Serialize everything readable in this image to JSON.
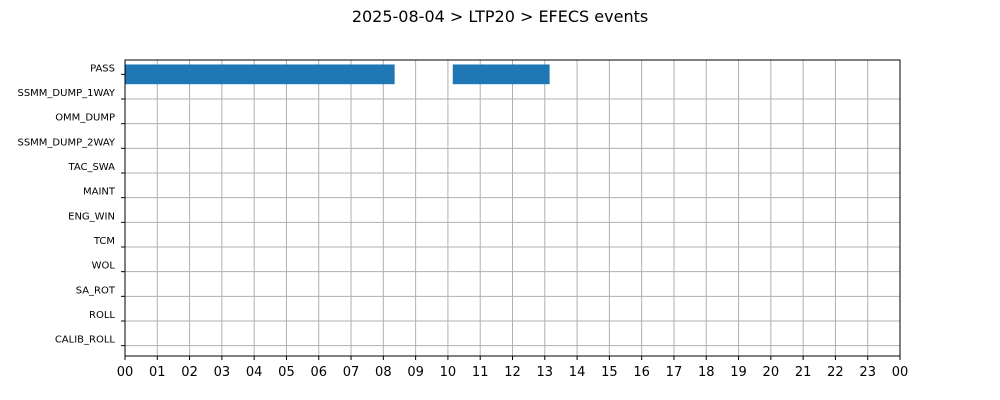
{
  "chart_data": {
    "type": "bar",
    "orientation": "horizontal-timeline",
    "title": "2025-08-04 > LTP20 > EFECS events",
    "xlabel": "",
    "ylabel": "",
    "xlim": [
      0,
      24
    ],
    "x_tick_labels": [
      "00",
      "01",
      "02",
      "03",
      "04",
      "05",
      "06",
      "07",
      "08",
      "09",
      "10",
      "11",
      "12",
      "13",
      "14",
      "15",
      "16",
      "17",
      "18",
      "19",
      "20",
      "21",
      "22",
      "23",
      "00"
    ],
    "categories": [
      "PASS",
      "SSMM_DUMP_1WAY",
      "OMM_DUMP",
      "SSMM_DUMP_2WAY",
      "TAC_SWA",
      "MAINT",
      "ENG_WIN",
      "TCM",
      "WOL",
      "SA_ROT",
      "ROLL",
      "CALIB_ROLL"
    ],
    "grid": true,
    "bar_color": "#1f77b4",
    "events": [
      {
        "category": "PASS",
        "start": 0.0,
        "end": 8.35
      },
      {
        "category": "PASS",
        "start": 10.15,
        "end": 13.15
      }
    ]
  }
}
